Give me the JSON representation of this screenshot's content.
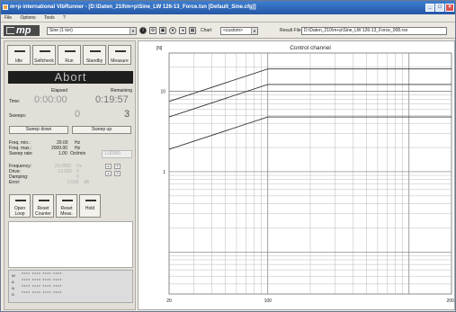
{
  "window": {
    "title": "m+p international VibRunner - [D:\\Daten_210\\m+p\\Sine_LW 126-13_Force.tsn  [Default_Sine.cfg]]",
    "controls": [
      "_",
      "□",
      "×"
    ]
  },
  "menu": [
    "File",
    "Options",
    "Tools",
    "?"
  ],
  "toolbar": {
    "logo": "mp",
    "mode_select": "Sine (1 ton)",
    "chart_select": "Chart",
    "channel_select": "<custom>",
    "result_label": "Result File:",
    "result_path": "D:\\Daten_210\\m+p\\Sine_LW 126-13_Force_008.rsn"
  },
  "control_buttons": [
    "Idle",
    "Selfcheck",
    "Run",
    "Standby",
    "Measure"
  ],
  "status_banner": "Abort",
  "time": {
    "elapsed_label": "Elapsed",
    "remaining_label": "Remaining",
    "time_label": "Time:",
    "elapsed": "0:00:00",
    "remaining": "0:19:57",
    "sweeps_label": "Sweeps:",
    "sweeps_done": "0",
    "sweeps_total": "3"
  },
  "sweep_buttons": {
    "down": "Sweep down",
    "up": "Sweep up"
  },
  "sweep_params": {
    "fmin_label": "Freq. min.:",
    "fmin": "20.00",
    "fmax_label": "Freq. max.:",
    "fmax": "2000.00",
    "rate_label": "Sweep rate:",
    "rate": "1.00",
    "hz": "Hz",
    "rate_unit": "Oct/min",
    "field_value": "1.00000"
  },
  "live": {
    "frequency_label": "Frequency:",
    "frequency": "20.0000",
    "frequency_unit": "Hz",
    "drive_label": "Drive:",
    "drive": "-12.000",
    "drive_unit": "V",
    "damping_label": "Damping:",
    "damping": "0",
    "error_label": "Error:",
    "error": "0.000",
    "error_unit": "dB"
  },
  "action_buttons": [
    "Open Loop",
    "Reset Counter",
    "Reset Meas.",
    "Hold"
  ],
  "status_panel": {
    "labels": [
      "W",
      "A",
      "N",
      "D"
    ],
    "dots": "**** **** **** ****"
  },
  "chart_data": {
    "type": "line",
    "title": "Control channel",
    "ylabel": "[N]",
    "xscale": "log",
    "yscale": "log",
    "xlim": [
      20,
      2000
    ],
    "ylim": [
      0.03,
      30
    ],
    "xticks": [
      "20",
      "100",
      "2000"
    ],
    "yticks": [
      "10",
      "1"
    ],
    "grid": true,
    "series": [
      {
        "x": [
          20,
          100,
          2000
        ],
        "y": [
          7.5,
          19,
          19
        ]
      },
      {
        "x": [
          20,
          100,
          2000
        ],
        "y": [
          4.8,
          12.2,
          12.2
        ]
      },
      {
        "x": [
          20,
          100,
          2000
        ],
        "y": [
          1.9,
          4.8,
          4.8
        ]
      }
    ]
  }
}
